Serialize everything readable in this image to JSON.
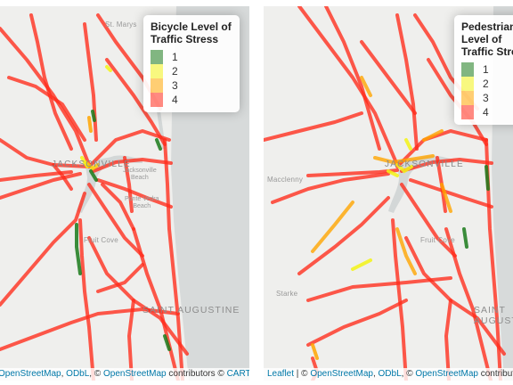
{
  "panels": [
    {
      "legend": {
        "title": "Bicycle Level of\nTraffic Stress",
        "items": [
          {
            "label": "1",
            "color": "#1a7a1a"
          },
          {
            "label": "2",
            "color": "#f3f315"
          },
          {
            "label": "3",
            "color": "#ffa500"
          },
          {
            "label": "4",
            "color": "#ff2a1a"
          }
        ]
      },
      "places": {
        "st_marys": "St. Marys",
        "jacksonville": "JACKSONVILLE",
        "jax_beach": "Jacksonville\nBeach",
        "ponte_vedra": "Ponte Vedra\nBeach",
        "fruit_cove": "Fruit Cove",
        "st_augustine": "SAINT AUGUSTINE"
      },
      "attribution": {
        "osm": "OpenStreetMap",
        "sep1": ", ",
        "odbl": "ODbL",
        "mid": ", © ",
        "osm2": "OpenStreetMap",
        "contrib": " contributors © ",
        "carto": "CARTO"
      }
    },
    {
      "legend": {
        "title": "Pedestrian Level of\nTraffic Stress",
        "items": [
          {
            "label": "1",
            "color": "#1a7a1a"
          },
          {
            "label": "2",
            "color": "#f3f315"
          },
          {
            "label": "3",
            "color": "#ffa500"
          },
          {
            "label": "4",
            "color": "#ff2a1a"
          }
        ]
      },
      "places": {
        "macclenny": "Macclenny",
        "jacksonville": "JACKSONVILLE",
        "fruit_cove": "Fruit Cove",
        "starke": "Starke",
        "st_augustine": "SAINT AUGUSTINE"
      },
      "attribution": {
        "leaflet": "Leaflet",
        "sep0": " | © ",
        "osm": "OpenStreetMap",
        "sep1": ", ",
        "odbl": "ODbL",
        "mid": ", © ",
        "osm2": "OpenStreetMap",
        "contrib": " contributors © CARTO"
      }
    }
  ]
}
